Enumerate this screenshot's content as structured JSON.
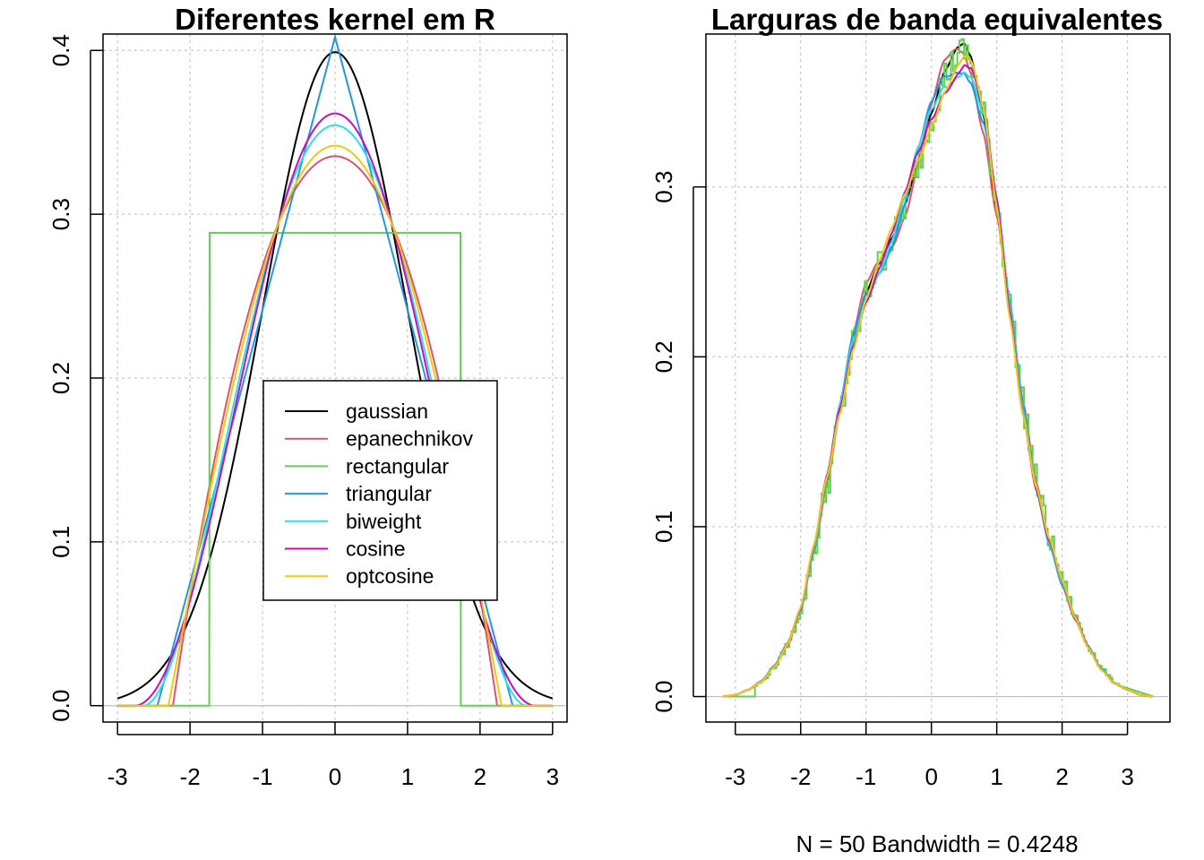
{
  "chart_data": [
    {
      "type": "line",
      "title": "Diferentes kernel em R",
      "subtitle": "",
      "xlabel": "",
      "ylabel": "",
      "xlim": [
        -3.2,
        3.2
      ],
      "ylim": [
        -0.01,
        0.41
      ],
      "xticks": [
        -3,
        -2,
        -1,
        0,
        1,
        2,
        3
      ],
      "yticks": [
        0.0,
        0.1,
        0.2,
        0.3,
        0.4
      ],
      "grid": true,
      "legend_position": "center-right",
      "series": [
        {
          "name": "gaussian",
          "color": "#000000",
          "kernel": "gaussian"
        },
        {
          "name": "epanechnikov",
          "color": "#DF536B",
          "kernel": "epanechnikov"
        },
        {
          "name": "rectangular",
          "color": "#61D04F",
          "kernel": "rectangular"
        },
        {
          "name": "triangular",
          "color": "#2297E6",
          "kernel": "triangular"
        },
        {
          "name": "biweight",
          "color": "#28E2E5",
          "kernel": "biweight"
        },
        {
          "name": "cosine",
          "color": "#CD0BBC",
          "kernel": "cosine"
        },
        {
          "name": "optcosine",
          "color": "#F5C710",
          "kernel": "optcosine"
        }
      ],
      "x_range": [
        -3,
        3
      ],
      "peak_values": {
        "gaussian": 0.399,
        "epanechnikov": 0.335,
        "rectangular": 0.289,
        "triangular": 0.405,
        "biweight": 0.354,
        "cosine": 0.361,
        "optcosine": 0.341
      }
    },
    {
      "type": "line",
      "title": "Larguras de banda equivalentes",
      "subtitle": "N = 50   Bandwidth = 0.4248",
      "xlabel": "",
      "ylabel": "",
      "xlim": [
        -3.45,
        3.65
      ],
      "ylim": [
        -0.015,
        0.39
      ],
      "xticks": [
        -3,
        -2,
        -1,
        0,
        1,
        2,
        3
      ],
      "yticks": [
        0.0,
        0.1,
        0.2,
        0.3
      ],
      "grid": true,
      "x_range": [
        -3.2,
        3.4
      ],
      "series": [
        {
          "kernel": "gaussian",
          "color": "#000000"
        },
        {
          "kernel": "epanechnikov",
          "color": "#DF536B"
        },
        {
          "kernel": "rectangular",
          "color": "#61D04F"
        },
        {
          "kernel": "triangular",
          "color": "#2297E6"
        },
        {
          "kernel": "biweight",
          "color": "#28E2E5"
        },
        {
          "kernel": "cosine",
          "color": "#CD0BBC"
        },
        {
          "kernel": "optcosine",
          "color": "#F5C710"
        }
      ],
      "density_curve": {
        "x": [
          -3.2,
          -3.0,
          -2.8,
          -2.6,
          -2.4,
          -2.2,
          -2.0,
          -1.8,
          -1.6,
          -1.4,
          -1.2,
          -1.0,
          -0.8,
          -0.6,
          -0.4,
          -0.2,
          0.0,
          0.2,
          0.4,
          0.5,
          0.6,
          0.8,
          1.0,
          1.2,
          1.4,
          1.6,
          1.8,
          2.0,
          2.2,
          2.4,
          2.6,
          2.8,
          3.0,
          3.2,
          3.4
        ],
        "y": [
          0.0,
          0.001,
          0.004,
          0.009,
          0.018,
          0.031,
          0.052,
          0.087,
          0.127,
          0.168,
          0.209,
          0.238,
          0.255,
          0.27,
          0.29,
          0.316,
          0.343,
          0.366,
          0.378,
          0.38,
          0.373,
          0.34,
          0.287,
          0.227,
          0.17,
          0.125,
          0.092,
          0.067,
          0.046,
          0.029,
          0.016,
          0.008,
          0.004,
          0.001,
          0.0
        ]
      }
    }
  ],
  "legend": {
    "items": [
      "gaussian",
      "epanechnikov",
      "rectangular",
      "triangular",
      "biweight",
      "cosine",
      "optcosine"
    ]
  }
}
